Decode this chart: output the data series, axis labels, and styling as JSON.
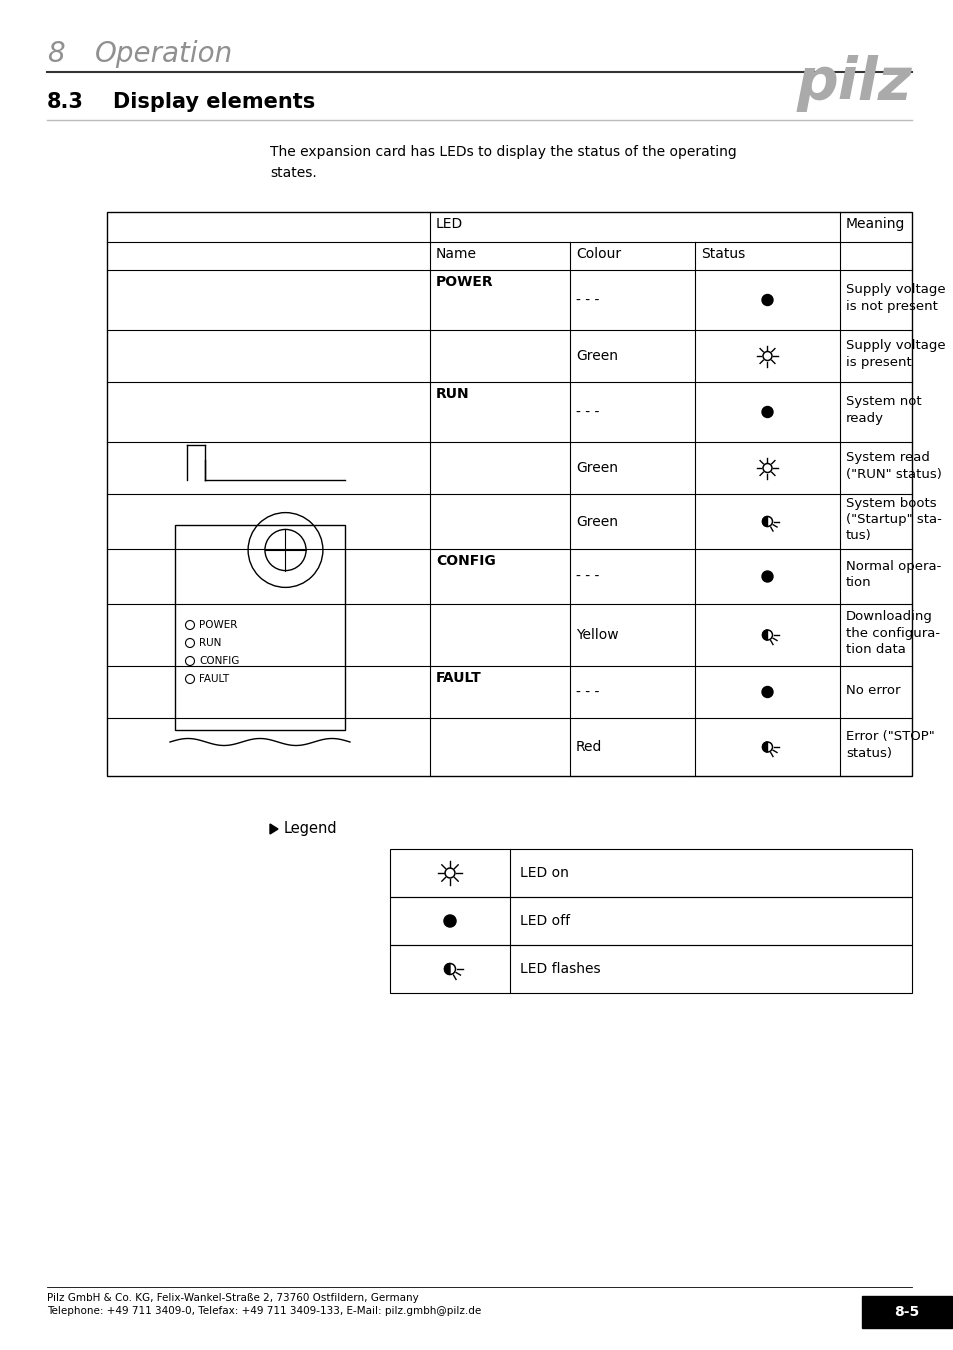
{
  "page_title_number": "8",
  "page_title_text": "Operation",
  "section_number": "8.3",
  "section_title": "Display elements",
  "intro_text": "The expansion card has LEDs to display the status of the operating\nstates.",
  "table_rows": [
    {
      "name": "POWER",
      "colour": "- - -",
      "status": "off",
      "meaning": "Supply voltage\nis not present"
    },
    {
      "name": "",
      "colour": "Green",
      "status": "on",
      "meaning": "Supply voltage\nis present"
    },
    {
      "name": "RUN",
      "colour": "- - -",
      "status": "off",
      "meaning": "System not\nready"
    },
    {
      "name": "",
      "colour": "Green",
      "status": "on",
      "meaning": "System read\n(\"RUN\" status)"
    },
    {
      "name": "",
      "colour": "Green",
      "status": "flash",
      "meaning": "System boots\n(\"Startup\" sta-\ntus)"
    },
    {
      "name": "CONFIG",
      "colour": "- - -",
      "status": "off",
      "meaning": "Normal opera-\ntion"
    },
    {
      "name": "",
      "colour": "Yellow",
      "status": "flash",
      "meaning": "Downloading\nthe configura-\ntion data"
    },
    {
      "name": "FAULT",
      "colour": "- - -",
      "status": "off",
      "meaning": "No error"
    },
    {
      "name": "",
      "colour": "Red",
      "status": "flash",
      "meaning": "Error (\"STOP\"\nstatus)"
    }
  ],
  "legend_title": "Legend",
  "legend_rows": [
    {
      "status": "on",
      "meaning": "LED on"
    },
    {
      "status": "off",
      "meaning": "LED off"
    },
    {
      "status": "flash",
      "meaning": "LED flashes"
    }
  ],
  "footer_line1": "Pilz GmbH & Co. KG, Felix-Wankel-Straße 2, 73760 Ostfildern, Germany",
  "footer_line2": "Telephone: +49 711 3409-0, Telefax: +49 711 3409-133, E-Mail: pilz.gmbh@pilz.de",
  "page_label": "8-5",
  "bg_color": "#ffffff"
}
